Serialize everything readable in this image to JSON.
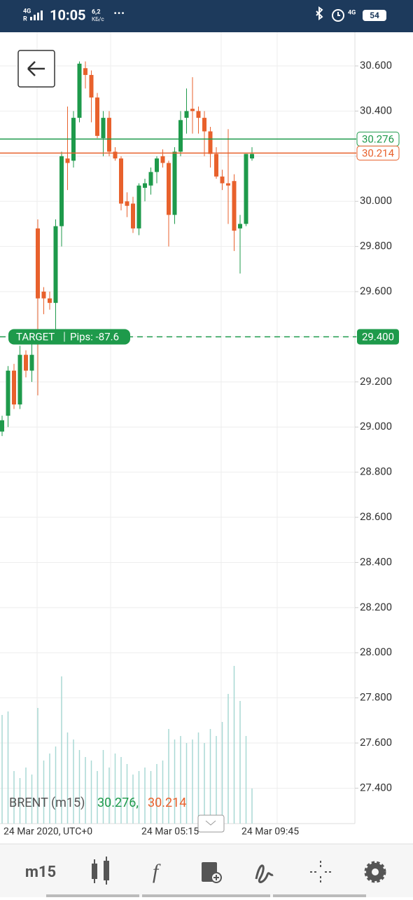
{
  "status_bar": {
    "network": "4G",
    "time": "10:05",
    "speed": "6,2",
    "speed_unit": "КБ/с",
    "network2": "4G",
    "battery": "54"
  },
  "chart": {
    "ylim": [
      27.243,
      30.743
    ],
    "yticks": [
      {
        "value": 30.6,
        "label": "30.600"
      },
      {
        "value": 30.4,
        "label": "30.400"
      },
      {
        "value": 30.2,
        "label": "30.200"
      },
      {
        "value": 30.0,
        "label": "30.000"
      },
      {
        "value": 29.8,
        "label": "29.800"
      },
      {
        "value": 29.6,
        "label": "29.600"
      },
      {
        "value": 29.4,
        "label": "29.400"
      },
      {
        "value": 29.2,
        "label": "29.200"
      },
      {
        "value": 29.0,
        "label": "29.000"
      },
      {
        "value": 28.8,
        "label": "28.800"
      },
      {
        "value": 28.6,
        "label": "28.600"
      },
      {
        "value": 28.4,
        "label": "28.400"
      },
      {
        "value": 28.2,
        "label": "28.200"
      },
      {
        "value": 28.0,
        "label": "28.000"
      },
      {
        "value": 27.8,
        "label": "27.800"
      },
      {
        "value": 27.6,
        "label": "27.600"
      },
      {
        "value": 27.4,
        "label": "27.400"
      }
    ],
    "candles": [
      [
        28.98,
        29.05,
        28.96,
        29.03
      ],
      [
        29.05,
        29.27,
        29.0,
        29.25
      ],
      [
        29.25,
        29.28,
        29.08,
        29.1
      ],
      [
        29.1,
        29.36,
        29.08,
        29.32
      ],
      [
        29.32,
        29.34,
        29.22,
        29.25
      ],
      [
        29.25,
        29.4,
        29.2,
        29.32
      ],
      [
        29.88,
        29.92,
        29.14,
        29.57
      ],
      [
        29.6,
        29.62,
        29.5,
        29.57
      ],
      [
        29.57,
        29.6,
        29.52,
        29.55
      ],
      [
        29.55,
        29.92,
        29.4,
        29.89
      ],
      [
        29.89,
        30.22,
        29.8,
        30.2
      ],
      [
        30.19,
        30.42,
        30.05,
        30.17
      ],
      [
        30.18,
        30.4,
        30.15,
        30.37
      ],
      [
        30.37,
        30.62,
        30.35,
        30.61
      ],
      [
        30.59,
        30.62,
        30.5,
        30.56
      ],
      [
        30.56,
        30.58,
        30.35,
        30.46
      ],
      [
        30.46,
        30.48,
        30.28,
        30.29
      ],
      [
        30.28,
        30.4,
        30.2,
        30.37
      ],
      [
        30.37,
        30.4,
        30.2,
        30.22
      ],
      [
        30.22,
        30.24,
        30.18,
        30.19
      ],
      [
        30.19,
        30.2,
        29.96,
        29.99
      ],
      [
        30.0,
        30.04,
        29.93,
        29.98
      ],
      [
        29.99,
        30.02,
        29.86,
        29.88
      ],
      [
        29.88,
        30.08,
        29.85,
        30.07
      ],
      [
        30.06,
        30.1,
        30.0,
        30.08
      ],
      [
        30.07,
        30.15,
        30.03,
        30.13
      ],
      [
        30.13,
        30.2,
        30.08,
        30.19
      ],
      [
        30.2,
        30.23,
        30.15,
        30.17
      ],
      [
        30.17,
        30.18,
        29.8,
        29.94
      ],
      [
        29.94,
        30.24,
        29.9,
        30.22
      ],
      [
        30.22,
        30.4,
        30.2,
        30.36
      ],
      [
        30.37,
        30.5,
        30.3,
        30.4
      ],
      [
        30.41,
        30.55,
        30.3,
        30.4
      ],
      [
        30.4,
        30.42,
        30.3,
        30.37
      ],
      [
        30.37,
        30.4,
        30.2,
        30.31
      ],
      [
        30.31,
        30.33,
        30.15,
        30.21
      ],
      [
        30.21,
        30.24,
        30.1,
        30.11
      ],
      [
        30.11,
        30.14,
        30.05,
        30.08
      ],
      [
        30.08,
        30.32,
        29.9,
        30.07
      ],
      [
        30.09,
        30.12,
        29.78,
        29.87
      ],
      [
        29.88,
        29.94,
        29.68,
        29.9
      ],
      [
        29.9,
        30.21,
        29.89,
        30.21
      ],
      [
        30.19,
        30.24,
        30.18,
        30.21
      ]
    ],
    "volumes": [
      155,
      160,
      75,
      65,
      80,
      70,
      165,
      90,
      100,
      110,
      210,
      130,
      120,
      105,
      95,
      90,
      75,
      105,
      80,
      100,
      95,
      85,
      70,
      75,
      80,
      75,
      85,
      90,
      135,
      120,
      125,
      115,
      120,
      130,
      115,
      135,
      125,
      145,
      185,
      225,
      175,
      125,
      50
    ],
    "bid_line": {
      "value": 30.276,
      "label": "30.276"
    },
    "ask_line": {
      "value": 30.214,
      "label": "30.214"
    },
    "target": {
      "name": "TARGET",
      "pips": "Pips: -87.6",
      "value": 29.4,
      "label": "29.400"
    },
    "legend": {
      "symbol": "BRENT (m15)",
      "bid": "30.276,",
      "ask": "30.214"
    },
    "xlabels": [
      "24 Mar 2020, UTC+0",
      "24 Mar 05:15",
      "24 Mar 09:45"
    ]
  },
  "toolbar": {
    "timeframe": "m15"
  }
}
